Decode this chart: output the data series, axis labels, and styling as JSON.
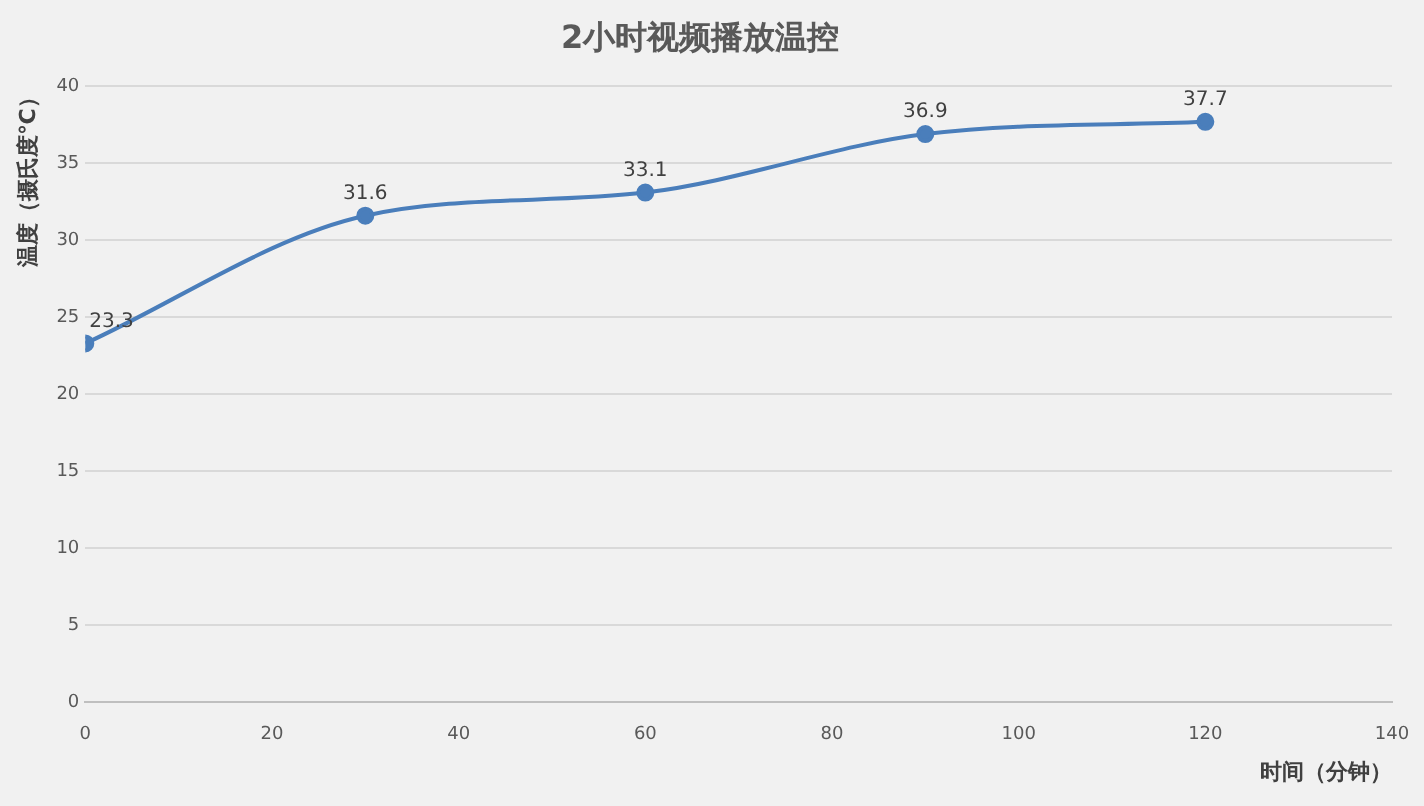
{
  "chart_data": {
    "type": "line",
    "title": "2小时视频播放温控",
    "xlabel": "时间（分钟）",
    "ylabel": "温度（摄氏度℃）",
    "x": [
      0,
      30,
      60,
      90,
      120
    ],
    "series": [
      {
        "color": "#4a7ebb",
        "values": [
          23.3,
          31.6,
          33.1,
          36.9,
          37.7
        ]
      }
    ],
    "xlim": [
      0,
      140
    ],
    "xticks": [
      0,
      20,
      40,
      60,
      80,
      100,
      120,
      140
    ],
    "ylim": [
      0,
      40
    ],
    "yticks": [
      0,
      5,
      10,
      15,
      20,
      25,
      30,
      35,
      40
    ],
    "grid": "y",
    "marker": "circle",
    "line_style": "solid",
    "data_labels": true,
    "legend": false
  }
}
